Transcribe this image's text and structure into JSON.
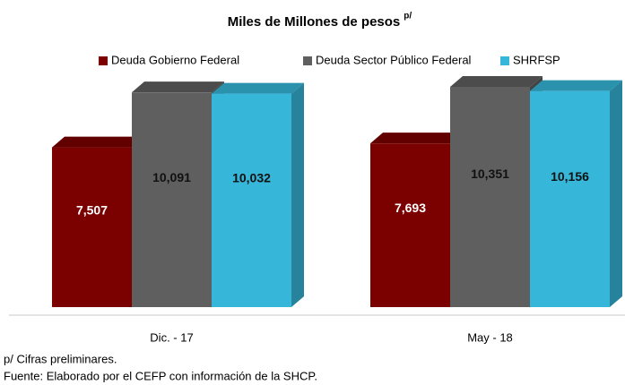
{
  "chart_data": {
    "type": "bar3d",
    "title": "Miles de Millones de pesos",
    "title_note": "p/",
    "categories": [
      "Dic. - 17",
      "May - 18"
    ],
    "series": [
      {
        "name": "Deuda Gobierno Federal",
        "color": "#7b0000",
        "values": [
          7507,
          7693
        ],
        "value_labels": [
          "7,507",
          "7,693"
        ]
      },
      {
        "name": "Deuda Sector Público Federal",
        "color": "#5f5f5f",
        "values": [
          10091,
          10351
        ],
        "value_labels": [
          "10,091",
          "10,351"
        ]
      },
      {
        "name": "SHRFSP",
        "color": "#36b6d9",
        "values": [
          10032,
          10156
        ],
        "value_labels": [
          "10,032",
          "10,156"
        ]
      }
    ],
    "notes": [
      "p/ Cifras preliminares.",
      "Fuente: Elaborado por el CEFP con información de la SHCP."
    ]
  }
}
